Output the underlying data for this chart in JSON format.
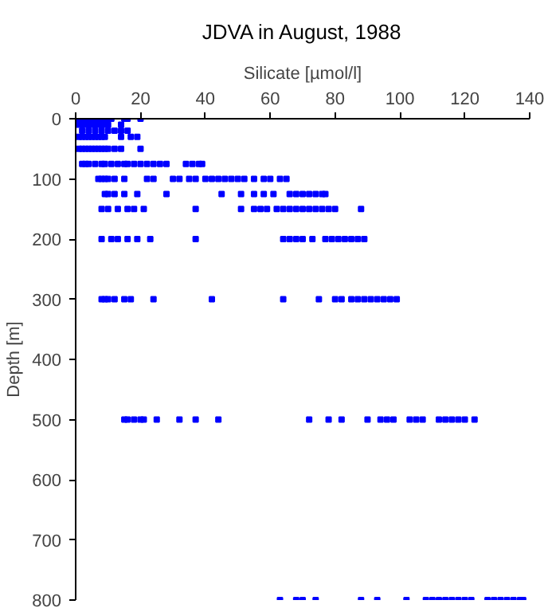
{
  "chart_data": {
    "type": "scatter",
    "title": "JDVA in August, 1988",
    "xlabel": "Silicate [µmol/l]",
    "ylabel": "Depth [m]",
    "xlim": [
      0,
      140
    ],
    "xticks": [
      0,
      20,
      40,
      60,
      80,
      100,
      120,
      140
    ],
    "ylim": [
      800,
      0
    ],
    "yticks": [
      0,
      100,
      200,
      300,
      400,
      500,
      600,
      700,
      800
    ],
    "grid": false,
    "marker": "square",
    "series": [
      {
        "color": "#0000ff",
        "x": [
          1,
          2,
          3,
          4,
          5,
          6,
          7,
          8,
          9,
          10,
          11,
          15,
          16,
          20,
          1,
          2,
          3,
          4,
          5,
          6,
          7,
          8,
          9,
          10,
          14,
          2,
          4,
          6,
          8,
          10,
          12,
          14,
          16,
          1,
          2,
          3,
          4,
          5,
          6,
          7,
          8,
          9,
          14,
          17,
          19,
          1,
          2,
          3,
          4,
          5,
          6,
          7,
          8,
          9,
          10,
          12,
          14,
          20,
          2,
          3,
          4,
          6,
          8,
          9,
          11,
          13,
          15,
          16,
          18,
          20,
          22,
          24,
          26,
          28,
          34,
          36,
          38,
          39,
          7,
          8,
          9,
          10,
          12,
          15,
          22,
          24,
          30,
          32,
          35,
          37,
          40,
          42,
          44,
          46,
          48,
          50,
          52,
          55,
          58,
          60,
          63,
          65,
          9,
          10,
          12,
          15,
          19,
          28,
          45,
          51,
          55,
          58,
          61,
          66,
          68,
          70,
          72,
          74,
          76,
          77,
          8,
          10,
          13,
          16,
          18,
          21,
          37,
          51,
          55,
          57,
          59,
          62,
          64,
          66,
          68,
          70,
          72,
          74,
          76,
          78,
          80,
          88,
          8,
          11,
          13,
          16,
          19,
          23,
          37,
          64,
          66,
          68,
          70,
          73,
          77,
          79,
          81,
          83,
          85,
          87,
          89,
          8,
          9,
          10,
          12,
          15,
          17,
          24,
          42,
          64,
          75,
          80,
          82,
          85,
          87,
          89,
          91,
          93,
          95,
          97,
          99,
          15,
          16,
          18,
          20,
          21,
          25,
          32,
          37,
          44,
          72,
          78,
          82,
          90,
          94,
          96,
          98,
          103,
          105,
          107,
          112,
          114,
          116,
          118,
          120,
          123,
          63,
          68,
          70,
          74,
          88,
          93,
          102,
          108,
          110,
          112,
          114,
          116,
          118,
          120,
          122,
          127,
          129,
          131,
          133,
          135,
          137,
          138
        ],
        "values": [
          0,
          0,
          0,
          0,
          0,
          0,
          0,
          0,
          0,
          0,
          0,
          0,
          0,
          0,
          10,
          10,
          10,
          10,
          10,
          10,
          10,
          10,
          10,
          10,
          10,
          20,
          20,
          20,
          20,
          20,
          20,
          20,
          20,
          30,
          30,
          30,
          30,
          30,
          30,
          30,
          30,
          30,
          30,
          30,
          30,
          50,
          50,
          50,
          50,
          50,
          50,
          50,
          50,
          50,
          50,
          50,
          50,
          50,
          75,
          75,
          75,
          75,
          75,
          75,
          75,
          75,
          75,
          75,
          75,
          75,
          75,
          75,
          75,
          75,
          75,
          75,
          75,
          75,
          100,
          100,
          100,
          100,
          100,
          100,
          100,
          100,
          100,
          100,
          100,
          100,
          100,
          100,
          100,
          100,
          100,
          100,
          100,
          100,
          100,
          100,
          100,
          100,
          125,
          125,
          125,
          125,
          125,
          125,
          125,
          125,
          125,
          125,
          125,
          125,
          125,
          125,
          125,
          125,
          125,
          125,
          150,
          150,
          150,
          150,
          150,
          150,
          150,
          150,
          150,
          150,
          150,
          150,
          150,
          150,
          150,
          150,
          150,
          150,
          150,
          150,
          150,
          150,
          200,
          200,
          200,
          200,
          200,
          200,
          200,
          200,
          200,
          200,
          200,
          200,
          200,
          200,
          200,
          200,
          200,
          200,
          200,
          300,
          300,
          300,
          300,
          300,
          300,
          300,
          300,
          300,
          300,
          300,
          300,
          300,
          300,
          300,
          300,
          300,
          300,
          300,
          300,
          500,
          500,
          500,
          500,
          500,
          500,
          500,
          500,
          500,
          500,
          500,
          500,
          500,
          500,
          500,
          500,
          500,
          500,
          500,
          500,
          500,
          500,
          500,
          500,
          500,
          800,
          800,
          800,
          800,
          800,
          800,
          800,
          800,
          800,
          800,
          800,
          800,
          800,
          800,
          800,
          800,
          800,
          800,
          800,
          800,
          800,
          800
        ]
      }
    ]
  }
}
